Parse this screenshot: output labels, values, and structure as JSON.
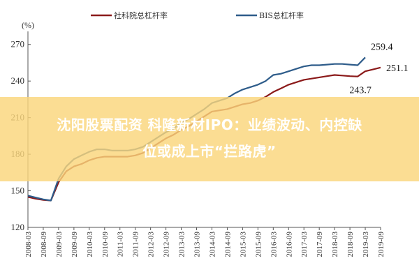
{
  "chart_data": {
    "type": "line",
    "ylabel": "(%)",
    "ylim": [
      120,
      275
    ],
    "yticks": [
      120,
      150,
      180,
      210,
      240,
      270
    ],
    "x": [
      "2008-03",
      "2008-09",
      "2009-03",
      "2009-09",
      "2010-03",
      "2010-09",
      "2011-03",
      "2011-09",
      "2012-03",
      "2012-09",
      "2013-03",
      "2013-09",
      "2014-03",
      "2014-09",
      "2015-03",
      "2015-09",
      "2016-03",
      "2016-09",
      "2017-03",
      "2017-09",
      "2018-03",
      "2018-09",
      "2019-03",
      "2019-09"
    ],
    "legend_position": "top",
    "grid": false,
    "series": [
      {
        "name": "社科院总杠杆率",
        "color": "#8b1a1a",
        "values": [
          [
            "2008-03",
            145
          ],
          [
            "2008-06",
            143.5
          ],
          [
            "2008-09",
            142.5
          ],
          [
            "2008-12",
            142
          ],
          [
            "2009-03",
            157
          ],
          [
            "2009-06",
            166
          ],
          [
            "2009-09",
            170
          ],
          [
            "2009-12",
            172
          ],
          [
            "2010-03",
            175
          ],
          [
            "2010-06",
            177
          ],
          [
            "2010-09",
            178
          ],
          [
            "2010-12",
            178
          ],
          [
            "2011-03",
            178
          ],
          [
            "2011-06",
            178
          ],
          [
            "2011-09",
            179
          ],
          [
            "2011-12",
            181
          ],
          [
            "2012-03",
            185
          ],
          [
            "2012-06",
            189
          ],
          [
            "2012-09",
            193
          ],
          [
            "2012-12",
            196
          ],
          [
            "2013-03",
            200
          ],
          [
            "2013-06",
            203
          ],
          [
            "2013-09",
            207
          ],
          [
            "2013-12",
            211
          ],
          [
            "2014-03",
            215
          ],
          [
            "2014-06",
            216
          ],
          [
            "2014-09",
            217
          ],
          [
            "2014-12",
            219
          ],
          [
            "2015-03",
            221
          ],
          [
            "2015-06",
            222
          ],
          [
            "2015-09",
            224
          ],
          [
            "2015-12",
            227
          ],
          [
            "2016-03",
            231
          ],
          [
            "2016-06",
            234
          ],
          [
            "2016-09",
            237
          ],
          [
            "2016-12",
            239
          ],
          [
            "2017-03",
            241
          ],
          [
            "2017-06",
            242
          ],
          [
            "2017-09",
            243
          ],
          [
            "2017-12",
            244
          ],
          [
            "2018-03",
            245
          ],
          [
            "2018-06",
            244.5
          ],
          [
            "2018-09",
            244
          ],
          [
            "2018-12",
            243.7
          ],
          [
            "2019-03",
            248
          ],
          [
            "2019-06",
            249.5
          ],
          [
            "2019-09",
            251.1
          ]
        ]
      },
      {
        "name": "BIS总杠杆率",
        "color": "#2e5c8a",
        "values": [
          [
            "2008-03",
            146
          ],
          [
            "2008-06",
            144.5
          ],
          [
            "2008-09",
            143
          ],
          [
            "2008-12",
            142
          ],
          [
            "2009-03",
            160
          ],
          [
            "2009-06",
            170
          ],
          [
            "2009-09",
            176
          ],
          [
            "2009-12",
            179
          ],
          [
            "2010-03",
            182
          ],
          [
            "2010-06",
            184
          ],
          [
            "2010-09",
            184
          ],
          [
            "2010-12",
            183
          ],
          [
            "2011-03",
            183
          ],
          [
            "2011-06",
            183
          ],
          [
            "2011-09",
            184
          ],
          [
            "2011-12",
            186
          ],
          [
            "2012-03",
            190
          ],
          [
            "2012-06",
            194
          ],
          [
            "2012-09",
            198
          ],
          [
            "2012-12",
            201
          ],
          [
            "2013-03",
            206
          ],
          [
            "2013-06",
            209
          ],
          [
            "2013-09",
            213
          ],
          [
            "2013-12",
            217
          ],
          [
            "2014-03",
            222
          ],
          [
            "2014-06",
            224
          ],
          [
            "2014-09",
            226
          ],
          [
            "2014-12",
            230
          ],
          [
            "2015-03",
            233
          ],
          [
            "2015-06",
            235
          ],
          [
            "2015-09",
            237
          ],
          [
            "2015-12",
            240
          ],
          [
            "2016-03",
            245
          ],
          [
            "2016-06",
            246
          ],
          [
            "2016-09",
            248
          ],
          [
            "2016-12",
            250
          ],
          [
            "2017-03",
            252
          ],
          [
            "2017-06",
            253
          ],
          [
            "2017-09",
            253
          ],
          [
            "2017-12",
            253.5
          ],
          [
            "2018-03",
            254
          ],
          [
            "2018-06",
            254
          ],
          [
            "2018-09",
            253.5
          ],
          [
            "2018-12",
            253
          ],
          [
            "2019-03",
            259.4
          ]
        ]
      }
    ],
    "annotations": [
      {
        "text": "259.4",
        "x": "2019-03",
        "y": 259.4,
        "series": 1,
        "placement": "above"
      },
      {
        "text": "251.1",
        "x": "2019-09",
        "y": 251.1,
        "series": 0,
        "placement": "right"
      },
      {
        "text": "243.7",
        "x": "2018-12",
        "y": 243.7,
        "series": 0,
        "placement": "below"
      }
    ]
  },
  "overlay": {
    "line1": "沈阳股票配资 科隆新材IPO：业绩波动、内控缺",
    "line2": "位或成上市“拦路虎”"
  }
}
